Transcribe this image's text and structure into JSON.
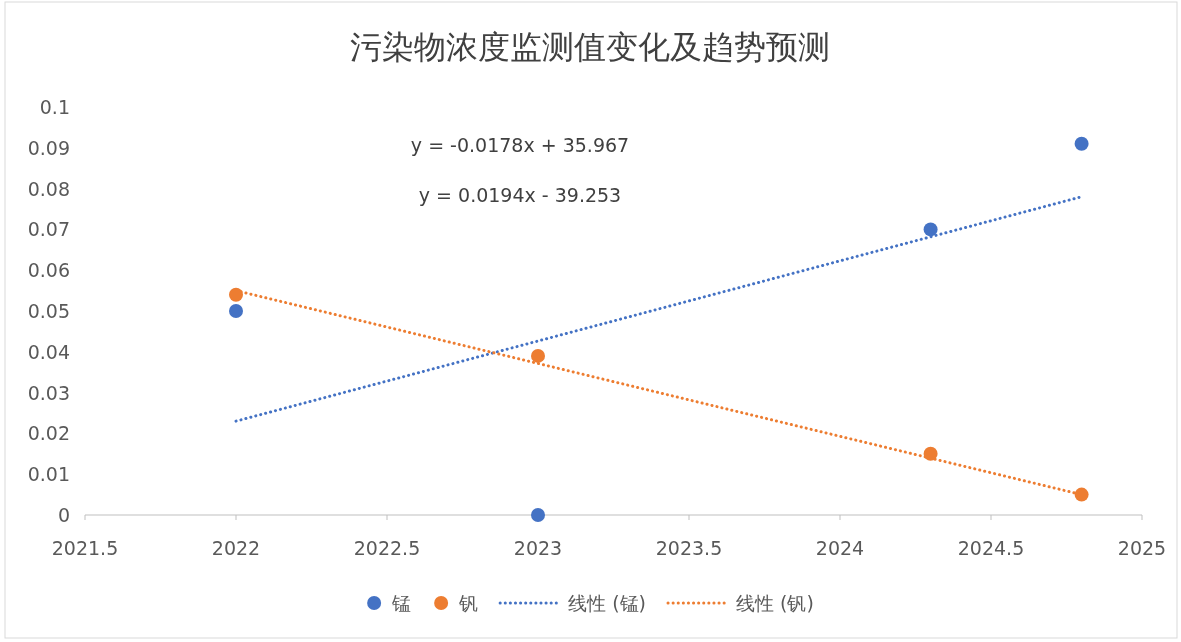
{
  "chart_data": {
    "type": "scatter",
    "title": "污染物浓度监测值变化及趋势预测",
    "xlim": [
      2021.5,
      2025
    ],
    "xticks": [
      2021.5,
      2022,
      2022.5,
      2023,
      2023.5,
      2024,
      2024.5,
      2025
    ],
    "ylim": [
      0,
      0.1
    ],
    "yticks": [
      0,
      0.01,
      0.02,
      0.03,
      0.04,
      0.05,
      0.06,
      0.07,
      0.08,
      0.09,
      0.1
    ],
    "legend": "bottom",
    "marker": "circle",
    "annotations": [
      "y = -0.0178x + 35.967",
      "y = 0.0194x - 39.253"
    ],
    "series": [
      {
        "name": "锰",
        "color": "#4472c4",
        "x": [
          2022,
          2023,
          2024.3,
          2024.8
        ],
        "values": [
          0.05,
          0,
          0.07,
          0.091
        ]
      },
      {
        "name": "钒",
        "color": "#ed7d31",
        "x": [
          2022,
          2023,
          2024.3,
          2024.8
        ],
        "values": [
          0.054,
          0.039,
          0.015,
          0.005
        ]
      },
      {
        "name": "线性 (锰)",
        "type": "line",
        "line_style": "dotted",
        "marker": "none",
        "color": "#4472c4",
        "x": [
          2022,
          2024.8
        ],
        "values": [
          0.023,
          0.078
        ]
      },
      {
        "name": "线性 (钒)",
        "type": "line",
        "line_style": "dotted",
        "marker": "none",
        "color": "#ed7d31",
        "x": [
          2022,
          2024.8
        ],
        "values": [
          0.055,
          0.005
        ]
      }
    ]
  }
}
